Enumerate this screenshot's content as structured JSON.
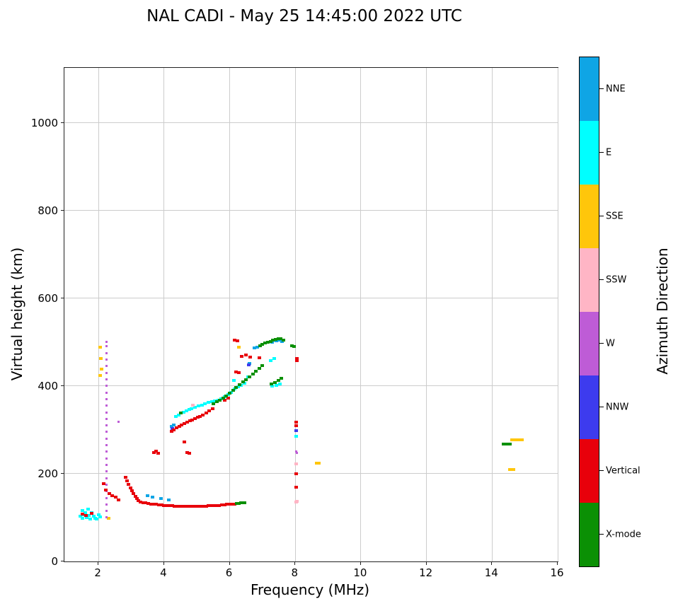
{
  "title": "NAL CADI - May 25 14:45:00 2022 UTC",
  "chart_data": {
    "type": "scatter",
    "title": "NAL CADI - May 25 14:45:00 2022 UTC",
    "xlabel": "Frequency (MHz)",
    "ylabel": "Virtual height (km)",
    "colorbar_title": "Azimuth Direction",
    "xlim": [
      0.96,
      16
    ],
    "ylim": [
      0,
      1125
    ],
    "xticks": [
      2,
      4,
      6,
      8,
      10,
      12,
      14,
      16
    ],
    "yticks": [
      0,
      200,
      400,
      600,
      800,
      1000
    ],
    "grid": true,
    "series": [
      {
        "name": "NNE",
        "color": "#0FA5E5",
        "point_size": [
          5,
          4
        ],
        "points": [
          [
            3.5,
            150
          ],
          [
            3.65,
            147
          ],
          [
            3.9,
            143
          ],
          [
            4.15,
            140
          ],
          [
            4.22,
            308
          ],
          [
            4.3,
            311
          ],
          [
            6.6,
            452
          ],
          [
            6.75,
            486
          ],
          [
            6.85,
            489
          ],
          [
            7.3,
            500
          ],
          [
            7.42,
            503
          ],
          [
            7.52,
            505
          ],
          [
            7.6,
            502
          ]
        ]
      },
      {
        "name": "E",
        "color": "#00FFFF",
        "point_size": [
          5,
          4
        ],
        "points": [
          [
            1.45,
            103
          ],
          [
            1.5,
            99
          ],
          [
            1.52,
            116
          ],
          [
            1.55,
            107
          ],
          [
            1.6,
            111
          ],
          [
            1.65,
            100
          ],
          [
            1.68,
            119
          ],
          [
            1.7,
            104
          ],
          [
            1.75,
            97
          ],
          [
            1.8,
            112
          ],
          [
            1.85,
            103
          ],
          [
            1.9,
            99
          ],
          [
            1.95,
            96
          ],
          [
            2.0,
            107
          ],
          [
            2.05,
            101
          ],
          [
            4.36,
            330
          ],
          [
            4.44,
            334
          ],
          [
            4.52,
            338
          ],
          [
            4.6,
            340
          ],
          [
            4.68,
            343
          ],
          [
            4.76,
            346
          ],
          [
            4.84,
            348
          ],
          [
            4.95,
            351
          ],
          [
            5.05,
            354
          ],
          [
            5.15,
            357
          ],
          [
            5.25,
            360
          ],
          [
            5.35,
            362
          ],
          [
            5.45,
            364
          ],
          [
            5.55,
            366
          ],
          [
            5.65,
            368
          ],
          [
            5.75,
            371
          ],
          [
            5.85,
            375
          ],
          [
            5.95,
            380
          ],
          [
            6.05,
            386
          ],
          [
            6.12,
            412
          ],
          [
            6.15,
            393
          ],
          [
            6.25,
            398
          ],
          [
            6.35,
            402
          ],
          [
            6.45,
            406
          ],
          [
            6.55,
            420
          ],
          [
            7.25,
            458
          ],
          [
            7.35,
            462
          ],
          [
            7.3,
            400
          ],
          [
            7.42,
            402
          ],
          [
            7.52,
            405
          ],
          [
            8.02,
            285
          ]
        ]
      },
      {
        "name": "SSE",
        "color": "#FFC60B",
        "point_size": [
          5,
          4
        ],
        "points": [
          [
            2.05,
            488
          ],
          [
            2.07,
            462
          ],
          [
            2.09,
            438
          ],
          [
            2.06,
            424
          ],
          [
            2.3,
            99
          ],
          [
            6.28,
            488
          ],
          [
            8.65,
            224
          ],
          [
            8.72,
            224
          ],
          [
            14.55,
            210
          ],
          [
            14.65,
            210
          ],
          [
            14.6,
            278
          ],
          [
            14.7,
            278
          ],
          [
            14.8,
            278
          ],
          [
            14.9,
            277
          ]
        ]
      },
      {
        "name": "SSW",
        "color": "#FFB5C5",
        "point_size": [
          5,
          4
        ],
        "points": [
          [
            4.88,
            357
          ],
          [
            8.02,
            135
          ],
          [
            8.05,
            137
          ],
          [
            8.02,
            222
          ]
        ]
      },
      {
        "name": "W",
        "color": "#BE5CD6",
        "point_size": [
          3,
          3
        ],
        "points": [
          [
            2.25,
            100
          ],
          [
            2.25,
            115
          ],
          [
            2.25,
            130
          ],
          [
            2.25,
            145
          ],
          [
            2.25,
            160
          ],
          [
            2.25,
            175
          ],
          [
            2.25,
            190
          ],
          [
            2.25,
            205
          ],
          [
            2.25,
            220
          ],
          [
            2.25,
            235
          ],
          [
            2.25,
            250
          ],
          [
            2.25,
            265
          ],
          [
            2.25,
            280
          ],
          [
            2.25,
            295
          ],
          [
            2.25,
            310
          ],
          [
            2.25,
            325
          ],
          [
            2.25,
            340
          ],
          [
            2.25,
            355
          ],
          [
            2.25,
            370
          ],
          [
            2.25,
            385
          ],
          [
            2.25,
            400
          ],
          [
            2.25,
            415
          ],
          [
            2.25,
            430
          ],
          [
            2.25,
            445
          ],
          [
            2.25,
            460
          ],
          [
            2.25,
            475
          ],
          [
            2.25,
            490
          ],
          [
            2.25,
            500
          ],
          [
            2.6,
            318
          ],
          [
            8.02,
            250
          ],
          [
            8.05,
            248
          ]
        ]
      },
      {
        "name": "NNW",
        "color": "#3D3BEE",
        "point_size": [
          5,
          4
        ],
        "points": [
          [
            4.25,
            303
          ],
          [
            6.58,
            448
          ],
          [
            8.02,
            298
          ]
        ]
      },
      {
        "name": "Vertical",
        "color": "#E8000B",
        "point_size": [
          5,
          4
        ],
        "points": [
          [
            1.5,
            108
          ],
          [
            1.62,
            104
          ],
          [
            1.78,
            110
          ],
          [
            2.15,
            178
          ],
          [
            2.22,
            163
          ],
          [
            2.32,
            155
          ],
          [
            2.42,
            150
          ],
          [
            2.52,
            147
          ],
          [
            2.62,
            141
          ],
          [
            2.82,
            192
          ],
          [
            2.87,
            184
          ],
          [
            2.92,
            176
          ],
          [
            2.97,
            168
          ],
          [
            3.02,
            161
          ],
          [
            3.07,
            154
          ],
          [
            3.12,
            148
          ],
          [
            3.17,
            143
          ],
          [
            3.22,
            139
          ],
          [
            3.28,
            136
          ],
          [
            3.36,
            134
          ],
          [
            3.44,
            133
          ],
          [
            3.52,
            132
          ],
          [
            3.6,
            131
          ],
          [
            3.68,
            130
          ],
          [
            3.76,
            130
          ],
          [
            3.84,
            129
          ],
          [
            3.92,
            129
          ],
          [
            4.0,
            128
          ],
          [
            4.08,
            128
          ],
          [
            4.16,
            127
          ],
          [
            4.24,
            127
          ],
          [
            4.32,
            126
          ],
          [
            4.4,
            126
          ],
          [
            4.48,
            126
          ],
          [
            4.56,
            125
          ],
          [
            4.64,
            125
          ],
          [
            4.72,
            125
          ],
          [
            4.8,
            125
          ],
          [
            4.88,
            125
          ],
          [
            4.96,
            125
          ],
          [
            5.04,
            125
          ],
          [
            5.12,
            126
          ],
          [
            5.2,
            126
          ],
          [
            5.28,
            126
          ],
          [
            5.36,
            127
          ],
          [
            5.44,
            127
          ],
          [
            5.52,
            127
          ],
          [
            5.6,
            128
          ],
          [
            5.68,
            128
          ],
          [
            5.76,
            129
          ],
          [
            5.84,
            129
          ],
          [
            5.92,
            130
          ],
          [
            6.0,
            130
          ],
          [
            6.08,
            131
          ],
          [
            6.16,
            131
          ],
          [
            3.7,
            249
          ],
          [
            3.76,
            251
          ],
          [
            3.82,
            247
          ],
          [
            4.22,
            296
          ],
          [
            4.3,
            300
          ],
          [
            4.38,
            304
          ],
          [
            4.46,
            308
          ],
          [
            4.54,
            311
          ],
          [
            4.62,
            314
          ],
          [
            4.7,
            317
          ],
          [
            4.78,
            320
          ],
          [
            4.86,
            323
          ],
          [
            4.94,
            326
          ],
          [
            5.02,
            329
          ],
          [
            5.1,
            331
          ],
          [
            5.18,
            334
          ],
          [
            5.28,
            338
          ],
          [
            5.38,
            343
          ],
          [
            5.48,
            348
          ],
          [
            4.62,
            272
          ],
          [
            4.7,
            248
          ],
          [
            4.76,
            247
          ],
          [
            5.85,
            368
          ],
          [
            5.95,
            372
          ],
          [
            6.2,
            432
          ],
          [
            6.28,
            430
          ],
          [
            6.36,
            468
          ],
          [
            6.5,
            470
          ],
          [
            6.62,
            466
          ],
          [
            6.9,
            464
          ],
          [
            6.15,
            505
          ],
          [
            6.23,
            503
          ],
          [
            8.02,
            318
          ],
          [
            8.02,
            310
          ],
          [
            8.02,
            200
          ],
          [
            8.02,
            170
          ],
          [
            8.04,
            462
          ],
          [
            8.04,
            457
          ]
        ]
      },
      {
        "name": "X-mode",
        "color": "#0B9005",
        "point_size": [
          5,
          4
        ],
        "points": [
          [
            6.22,
            132
          ],
          [
            6.28,
            132
          ],
          [
            6.34,
            133
          ],
          [
            6.4,
            133
          ],
          [
            6.46,
            133
          ],
          [
            4.5,
            338
          ],
          [
            5.5,
            360
          ],
          [
            5.6,
            364
          ],
          [
            5.7,
            368
          ],
          [
            5.8,
            372
          ],
          [
            5.9,
            377
          ],
          [
            6.0,
            383
          ],
          [
            6.1,
            390
          ],
          [
            6.2,
            396
          ],
          [
            6.3,
            403
          ],
          [
            6.4,
            409
          ],
          [
            6.5,
            415
          ],
          [
            6.6,
            421
          ],
          [
            6.7,
            427
          ],
          [
            6.8,
            433
          ],
          [
            6.9,
            440
          ],
          [
            7.0,
            446
          ],
          [
            6.92,
            492
          ],
          [
            7.0,
            495
          ],
          [
            7.08,
            498
          ],
          [
            7.16,
            500
          ],
          [
            7.24,
            502
          ],
          [
            7.32,
            504
          ],
          [
            7.4,
            506
          ],
          [
            7.48,
            507
          ],
          [
            7.56,
            508
          ],
          [
            7.64,
            505
          ],
          [
            7.28,
            405
          ],
          [
            7.38,
            408
          ],
          [
            7.48,
            412
          ],
          [
            7.58,
            417
          ],
          [
            7.9,
            492
          ],
          [
            7.97,
            490
          ],
          [
            14.35,
            268
          ],
          [
            14.45,
            268
          ],
          [
            14.55,
            268
          ]
        ]
      }
    ]
  }
}
